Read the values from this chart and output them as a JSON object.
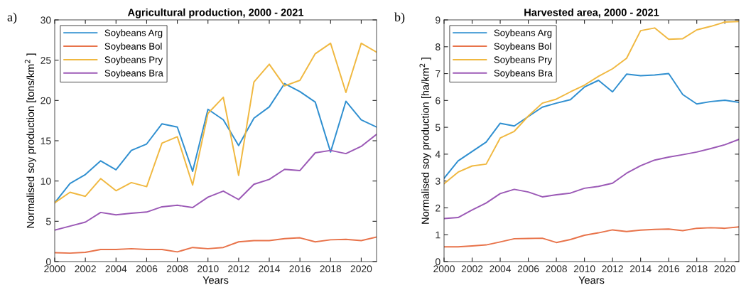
{
  "chart_data": [
    {
      "type": "line",
      "title": "Agricultural production, 2000 - 2021",
      "xlabel": "Years",
      "ylabel": "Normalised soy production [tons/km$^{2}$ ]",
      "annotations": [
        "a)"
      ],
      "x": [
        2000,
        2001,
        2002,
        2003,
        2004,
        2005,
        2006,
        2007,
        2008,
        2009,
        2010,
        2011,
        2012,
        2013,
        2014,
        2015,
        2016,
        2017,
        2018,
        2019,
        2020,
        2021
      ],
      "series": [
        {
          "name": "Soybeans Arg",
          "color": "#2f8fd0",
          "values": [
            7.3,
            9.7,
            10.8,
            12.5,
            11.4,
            13.8,
            14.6,
            17.1,
            16.7,
            11.2,
            18.9,
            17.6,
            14.4,
            17.8,
            19.2,
            22.1,
            21.1,
            19.8,
            13.6,
            19.9,
            17.6,
            16.7
          ]
        },
        {
          "name": "Soybeans Bol",
          "color": "#e8734a",
          "values": [
            1.1,
            1.05,
            1.15,
            1.5,
            1.5,
            1.6,
            1.5,
            1.5,
            1.2,
            1.75,
            1.6,
            1.75,
            2.45,
            2.6,
            2.6,
            2.85,
            2.95,
            2.45,
            2.7,
            2.75,
            2.6,
            3.05
          ]
        },
        {
          "name": "Soybeans Pry",
          "color": "#f0b840",
          "values": [
            7.3,
            8.6,
            8.1,
            10.3,
            8.8,
            9.8,
            9.3,
            14.7,
            15.5,
            9.5,
            18.4,
            20.4,
            10.7,
            22.3,
            24.5,
            21.8,
            22.5,
            25.8,
            27.1,
            21.0,
            27.1,
            26.0
          ]
        },
        {
          "name": "Soybeans Bra",
          "color": "#9b59b6",
          "values": [
            3.9,
            4.4,
            4.9,
            6.1,
            5.8,
            6.0,
            6.15,
            6.8,
            7.0,
            6.7,
            8.0,
            8.75,
            7.7,
            9.6,
            10.2,
            11.45,
            11.3,
            13.5,
            13.8,
            13.4,
            14.3,
            15.8
          ]
        }
      ],
      "xlim": [
        2000,
        2021
      ],
      "xticks": [
        2000,
        2002,
        2004,
        2006,
        2008,
        2010,
        2012,
        2014,
        2016,
        2018,
        2020
      ],
      "ylim": [
        0,
        30
      ],
      "yticks": [
        0,
        5,
        10,
        15,
        20,
        25,
        30
      ],
      "grid": false,
      "legend": "top left"
    },
    {
      "type": "line",
      "title": "Harvested area, 2000 - 2021",
      "xlabel": "Years",
      "ylabel": "Normalised soy production [ha/km$^{2}$ ]",
      "annotations": [
        "b)"
      ],
      "x": [
        2000,
        2001,
        2002,
        2003,
        2004,
        2005,
        2006,
        2007,
        2008,
        2009,
        2010,
        2011,
        2012,
        2013,
        2014,
        2015,
        2016,
        2017,
        2018,
        2019,
        2020,
        2021
      ],
      "series": [
        {
          "name": "Soybeans Arg",
          "color": "#2f8fd0",
          "values": [
            3.1,
            3.75,
            4.1,
            4.45,
            5.15,
            5.05,
            5.4,
            5.75,
            5.9,
            6.03,
            6.5,
            6.75,
            6.32,
            6.98,
            6.92,
            6.95,
            7.0,
            6.22,
            5.87,
            5.96,
            6.01,
            5.93
          ]
        },
        {
          "name": "Soybeans Bol",
          "color": "#e8734a",
          "values": [
            0.55,
            0.55,
            0.58,
            0.62,
            0.73,
            0.85,
            0.86,
            0.87,
            0.71,
            0.82,
            0.98,
            1.07,
            1.18,
            1.12,
            1.17,
            1.2,
            1.21,
            1.15,
            1.24,
            1.26,
            1.24,
            1.29
          ]
        },
        {
          "name": "Soybeans Pry",
          "color": "#f0b840",
          "values": [
            2.9,
            3.33,
            3.56,
            3.63,
            4.6,
            4.85,
            5.42,
            5.9,
            6.05,
            6.32,
            6.57,
            6.9,
            7.18,
            7.57,
            8.6,
            8.7,
            8.28,
            8.3,
            8.63,
            8.76,
            8.92,
            8.94
          ]
        },
        {
          "name": "Soybeans Bra",
          "color": "#9b59b6",
          "values": [
            1.6,
            1.64,
            1.92,
            2.18,
            2.53,
            2.69,
            2.59,
            2.41,
            2.49,
            2.55,
            2.73,
            2.8,
            2.92,
            3.29,
            3.57,
            3.78,
            3.89,
            3.98,
            4.08,
            4.21,
            4.35,
            4.55
          ]
        }
      ],
      "xlim": [
        2000,
        2021
      ],
      "xticks": [
        2000,
        2002,
        2004,
        2006,
        2008,
        2010,
        2012,
        2014,
        2016,
        2018,
        2020
      ],
      "ylim": [
        0,
        9
      ],
      "yticks": [
        0,
        1,
        2,
        3,
        4,
        5,
        6,
        7,
        8,
        9
      ],
      "grid": false,
      "legend": "top left"
    }
  ]
}
